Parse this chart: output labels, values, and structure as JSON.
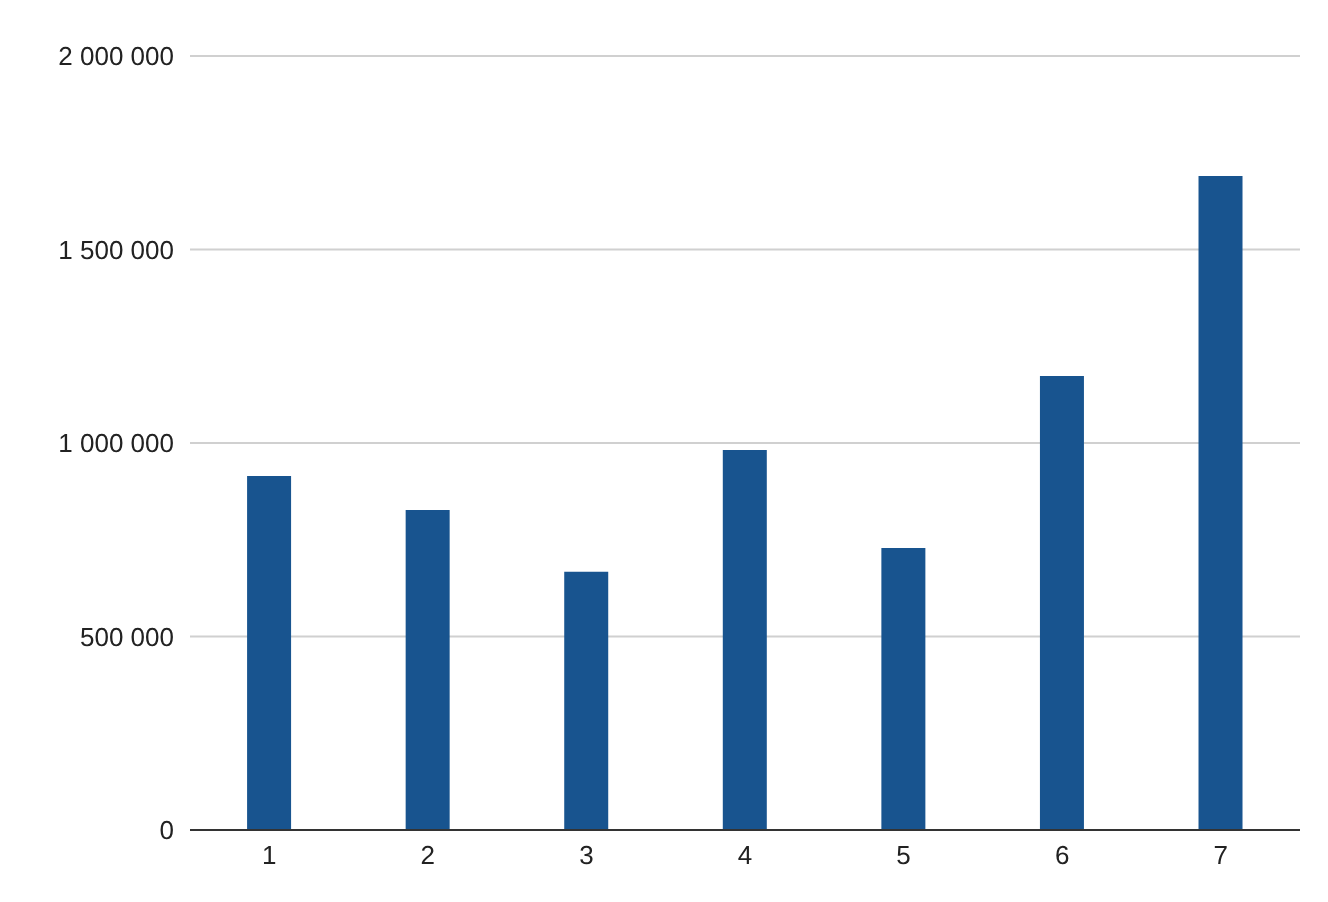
{
  "chart_data": {
    "type": "bar",
    "categories": [
      "1",
      "2",
      "3",
      "4",
      "5",
      "6",
      "7"
    ],
    "values": [
      915000,
      827000,
      667000,
      982000,
      729000,
      1173000,
      1690000
    ],
    "color": "#18548f",
    "ylim": [
      0,
      2000000
    ],
    "yticks": [
      {
        "value": 0,
        "label": "0"
      },
      {
        "value": 500000,
        "label": "500 000"
      },
      {
        "value": 1000000,
        "label": "1 000 000"
      },
      {
        "value": 1500000,
        "label": "1 500 000"
      },
      {
        "value": 2000000,
        "label": "2 000 000"
      }
    ],
    "grid": "y"
  }
}
